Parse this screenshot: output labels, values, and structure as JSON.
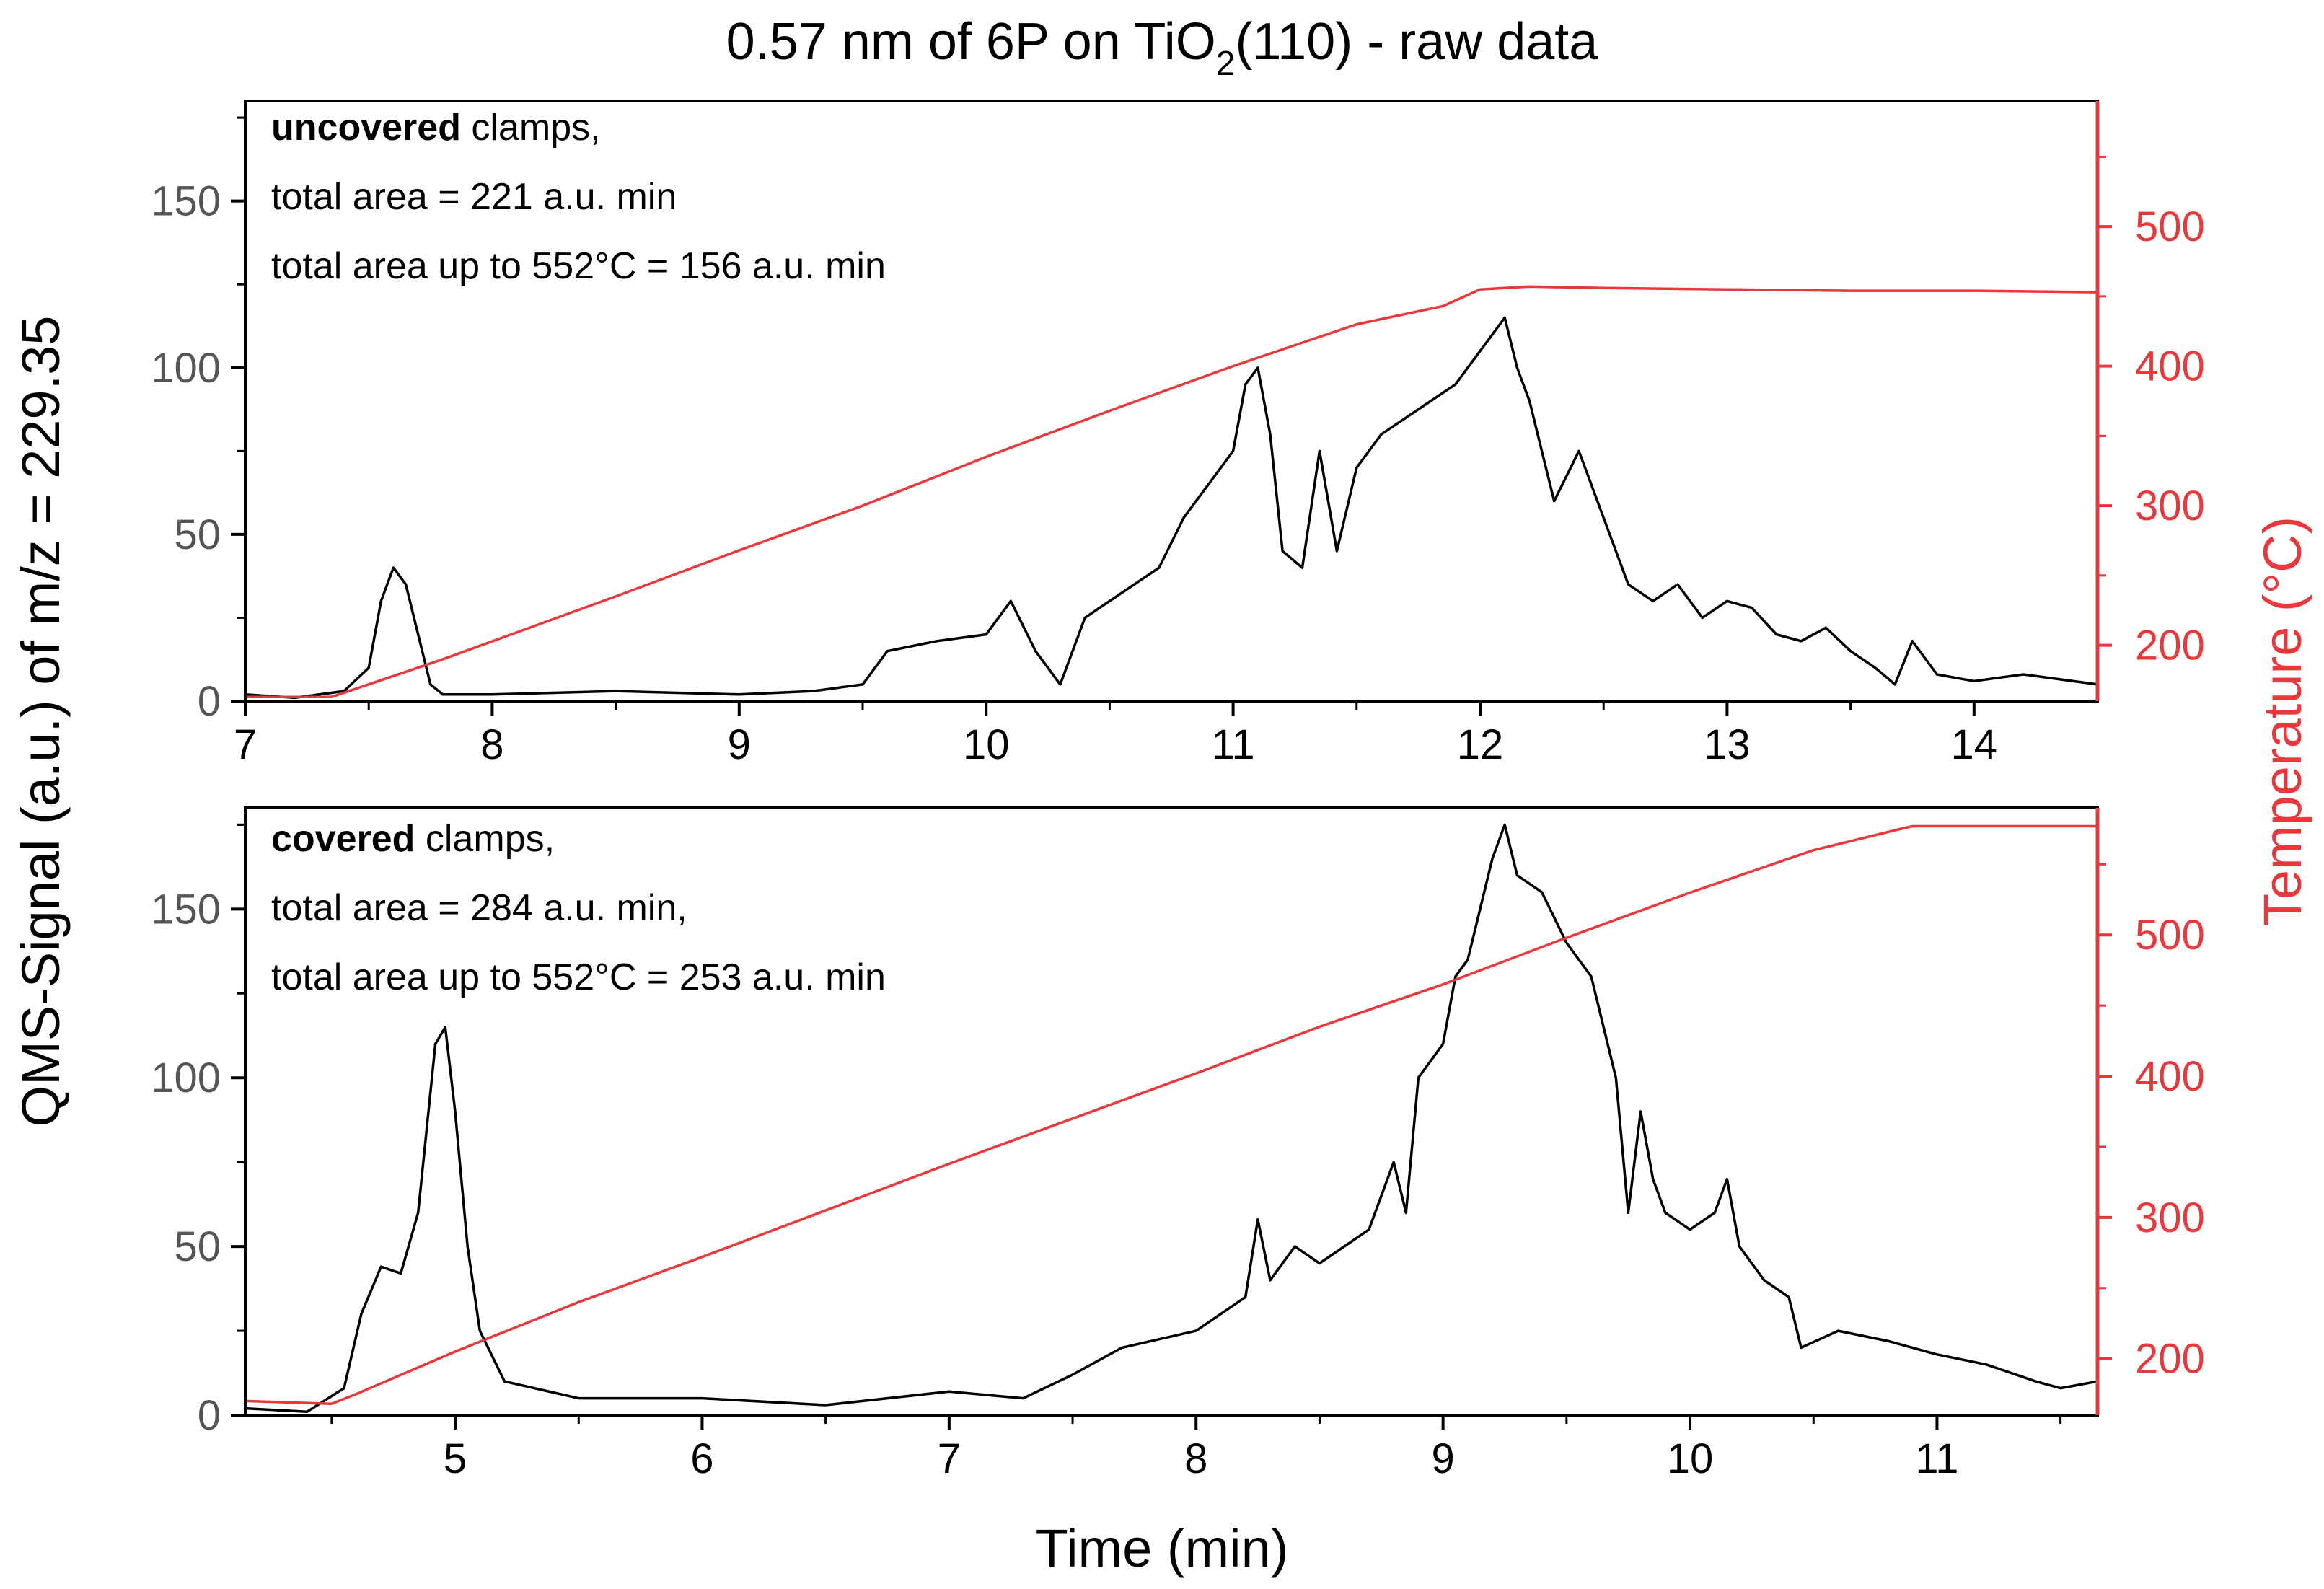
{
  "figure": {
    "title_main": "0.57 nm of 6P on TiO",
    "title_sub": "2",
    "title_tail": "(110) - raw data",
    "xlabel": "Time (min)",
    "ylabel_left": "QMS-Signal (a.u.) of m/z = 229.35",
    "ylabel_right": "Temperature (°C)",
    "colors": {
      "qms": "#000000",
      "temperature": "#e8383b"
    }
  },
  "chart_data": [
    {
      "type": "line",
      "panel": "top",
      "annotation": {
        "line1_bold": "uncovered",
        "line1_rest": " clamps,",
        "line2": "total area = 221 a.u. min",
        "line3": "total area up to 552°C = 156 a.u. min"
      },
      "xlim": [
        7,
        14.5
      ],
      "ylim_left": [
        0,
        180
      ],
      "ylim_right": [
        160,
        590
      ],
      "x_ticks": [
        "7",
        "8",
        "9",
        "10",
        "11",
        "12",
        "13",
        "14"
      ],
      "yl_ticks": [
        "0",
        "50",
        "100",
        "150"
      ],
      "yr_ticks": [
        "200",
        "300",
        "400",
        "500"
      ],
      "series": [
        {
          "axis": "left",
          "color": "#000000",
          "x": [
            7.0,
            7.2,
            7.4,
            7.5,
            7.55,
            7.6,
            7.65,
            7.7,
            7.75,
            7.8,
            8.0,
            8.5,
            9.0,
            9.3,
            9.5,
            9.6,
            9.8,
            10.0,
            10.1,
            10.2,
            10.25,
            10.3,
            10.4,
            10.5,
            10.7,
            10.8,
            10.9,
            11.0,
            11.05,
            11.1,
            11.15,
            11.2,
            11.28,
            11.35,
            11.42,
            11.5,
            11.6,
            11.7,
            11.8,
            11.9,
            12.0,
            12.05,
            12.1,
            12.15,
            12.2,
            12.3,
            12.4,
            12.5,
            12.6,
            12.7,
            12.8,
            12.9,
            13.0,
            13.1,
            13.2,
            13.3,
            13.4,
            13.5,
            13.6,
            13.68,
            13.75,
            13.85,
            14.0,
            14.2,
            14.5
          ],
          "values": [
            2,
            1,
            3,
            10,
            30,
            40,
            35,
            20,
            5,
            2,
            2,
            3,
            2,
            3,
            5,
            15,
            18,
            20,
            30,
            15,
            10,
            5,
            25,
            30,
            40,
            55,
            65,
            75,
            95,
            100,
            80,
            45,
            40,
            75,
            45,
            70,
            80,
            85,
            90,
            95,
            105,
            110,
            115,
            100,
            90,
            60,
            75,
            55,
            35,
            30,
            35,
            25,
            30,
            28,
            20,
            18,
            22,
            15,
            10,
            5,
            18,
            8,
            6,
            8,
            5
          ]
        },
        {
          "axis": "right",
          "color": "#e8383b",
          "x": [
            7.0,
            7.35,
            7.5,
            7.8,
            8.5,
            9.0,
            9.5,
            10.0,
            10.5,
            11.0,
            11.5,
            11.85,
            12.0,
            12.2,
            12.5,
            13.0,
            13.5,
            14.0,
            14.5
          ],
          "values": [
            163,
            163,
            172,
            190,
            235,
            268,
            300,
            335,
            368,
            400,
            430,
            443,
            455,
            457,
            456,
            455,
            454,
            454,
            453
          ]
        }
      ]
    },
    {
      "type": "line",
      "panel": "bottom",
      "annotation": {
        "line1_bold": "covered",
        "line1_rest": " clamps,",
        "line2": "total area =  284 a.u. min,",
        "line3": "total area up to 552°C = 253 a.u. min"
      },
      "xlim": [
        4.15,
        11.65
      ],
      "ylim_left": [
        0,
        180
      ],
      "ylim_right": [
        160,
        590
      ],
      "x_ticks": [
        "5",
        "6",
        "7",
        "8",
        "9",
        "10",
        "11"
      ],
      "yl_ticks": [
        "0",
        "50",
        "100",
        "150"
      ],
      "yr_ticks": [
        "200",
        "300",
        "400",
        "500"
      ],
      "series": [
        {
          "axis": "left",
          "color": "#000000",
          "x": [
            4.15,
            4.4,
            4.55,
            4.62,
            4.7,
            4.78,
            4.85,
            4.92,
            4.96,
            5.0,
            5.05,
            5.1,
            5.2,
            5.5,
            6.0,
            6.5,
            7.0,
            7.3,
            7.5,
            7.7,
            8.0,
            8.2,
            8.25,
            8.3,
            8.4,
            8.5,
            8.7,
            8.8,
            8.85,
            8.9,
            9.0,
            9.05,
            9.1,
            9.2,
            9.25,
            9.3,
            9.4,
            9.5,
            9.6,
            9.7,
            9.75,
            9.8,
            9.85,
            9.9,
            10.0,
            10.1,
            10.15,
            10.2,
            10.3,
            10.4,
            10.45,
            10.6,
            10.8,
            11.0,
            11.2,
            11.4,
            11.5,
            11.65
          ],
          "values": [
            2,
            1,
            8,
            30,
            44,
            42,
            60,
            110,
            115,
            90,
            50,
            25,
            10,
            5,
            5,
            3,
            7,
            5,
            12,
            20,
            25,
            35,
            58,
            40,
            50,
            45,
            55,
            75,
            60,
            100,
            110,
            130,
            135,
            165,
            175,
            160,
            155,
            140,
            130,
            100,
            60,
            90,
            70,
            60,
            55,
            60,
            70,
            50,
            40,
            35,
            20,
            25,
            22,
            18,
            15,
            10,
            8,
            10
          ]
        },
        {
          "axis": "right",
          "color": "#e8383b",
          "x": [
            4.15,
            4.5,
            4.6,
            5.0,
            5.5,
            6.0,
            6.5,
            7.0,
            7.5,
            8.0,
            8.5,
            9.0,
            9.5,
            10.0,
            10.5,
            10.85,
            10.9,
            11.3,
            11.65
          ],
          "values": [
            170,
            168,
            175,
            205,
            240,
            272,
            305,
            338,
            370,
            402,
            435,
            465,
            498,
            530,
            560,
            575,
            577,
            577,
            577
          ]
        }
      ]
    }
  ]
}
